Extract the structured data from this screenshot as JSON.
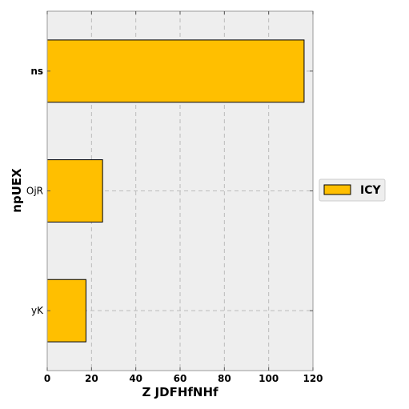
{
  "chart_data": {
    "type": "bar",
    "orientation": "horizontal",
    "categories": [
      "ns",
      "OjR",
      "yK"
    ],
    "bold_categories": [
      "ns"
    ],
    "series": [
      {
        "name": "ICY",
        "values": [
          116,
          25,
          17.5
        ],
        "color": "#FFBF00"
      }
    ],
    "xlabel": "Z JDFHfNHf",
    "ylabel": "npUEX",
    "xlim": [
      0,
      120
    ],
    "xticks": [
      0,
      20,
      40,
      60,
      80,
      100,
      120
    ],
    "grid": true,
    "legend_position": "right",
    "background_color": "#EEEEEE",
    "grid_color": "#BBBBBB"
  }
}
